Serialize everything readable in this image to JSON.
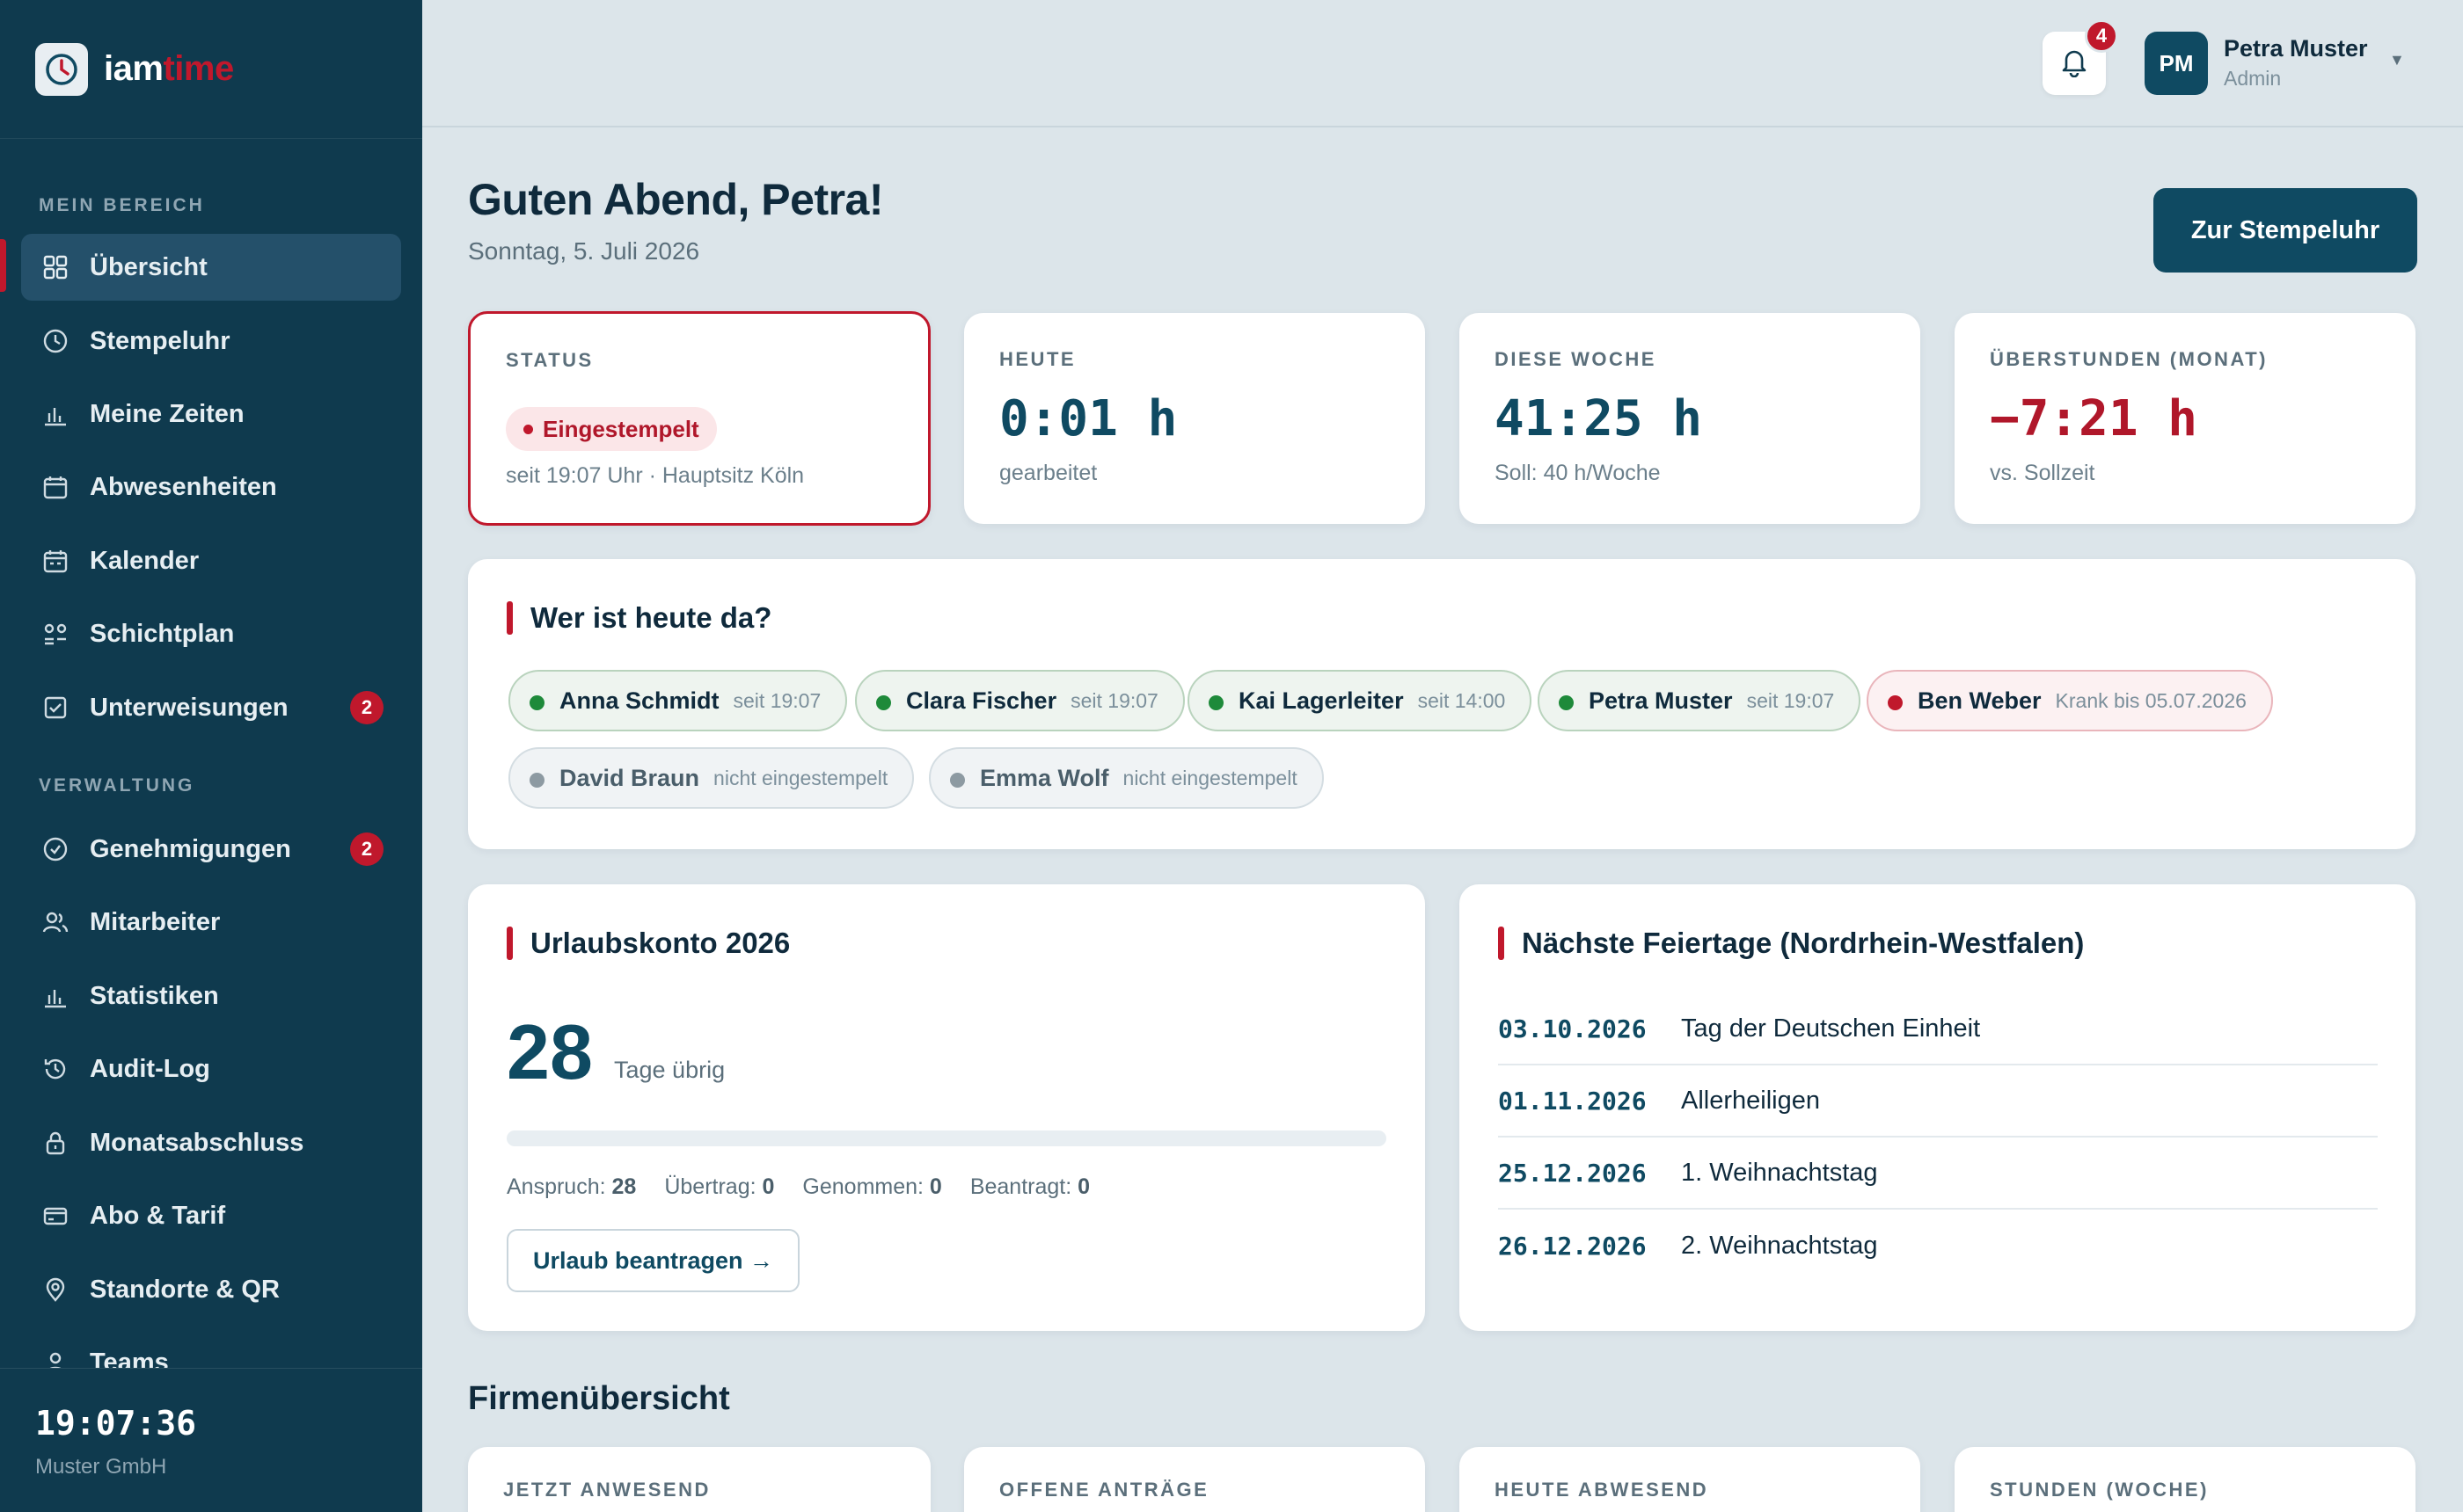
{
  "brand": {
    "part1": "iam",
    "part2": "time"
  },
  "sidebar": {
    "section1": "MEIN BEREICH",
    "section2": "VERWALTUNG",
    "items": [
      {
        "label": "Übersicht",
        "icon": "grid-icon"
      },
      {
        "label": "Stempeluhr",
        "icon": "clock-icon"
      },
      {
        "label": "Meine Zeiten",
        "icon": "bar-chart-icon"
      },
      {
        "label": "Abwesenheiten",
        "icon": "calendar-icon"
      },
      {
        "label": "Kalender",
        "icon": "calendar-icon"
      },
      {
        "label": "Schichtplan",
        "icon": "shift-icon"
      },
      {
        "label": "Unterweisungen",
        "icon": "checklist-icon",
        "badge": "2"
      },
      {
        "label": "Genehmigungen",
        "icon": "check-circle-icon",
        "badge": "2"
      },
      {
        "label": "Mitarbeiter",
        "icon": "users-icon"
      },
      {
        "label": "Statistiken",
        "icon": "bar-chart-icon"
      },
      {
        "label": "Audit-Log",
        "icon": "history-icon"
      },
      {
        "label": "Monatsabschluss",
        "icon": "lock-icon"
      },
      {
        "label": "Abo & Tarif",
        "icon": "credit-card-icon"
      },
      {
        "label": "Standorte & QR",
        "icon": "location-icon"
      },
      {
        "label": "Teams",
        "icon": "user-icon"
      }
    ],
    "clock": "19:07:36",
    "company": "Muster GmbH"
  },
  "topbar": {
    "notifications": "4",
    "avatar_initials": "PM",
    "user_name": "Petra Muster",
    "user_role": "Admin"
  },
  "main": {
    "greeting": "Guten Abend, Petra!",
    "date": "Sonntag, 5. Juli 2026",
    "clock_button": "Zur Stempeluhr",
    "stats": {
      "status": {
        "label": "STATUS",
        "pill": "Eingestempelt",
        "sub": "seit 19:07 Uhr · Hauptsitz Köln"
      },
      "today": {
        "label": "HEUTE",
        "value": "0:01 h",
        "sub": "gearbeitet"
      },
      "week": {
        "label": "DIESE WOCHE",
        "value": "41:25 h",
        "sub": "Soll: 40 h/Woche"
      },
      "overtime": {
        "label": "ÜBERSTUNDEN (MONAT)",
        "value": "−7:21 h",
        "sub": "vs. Sollzeit"
      }
    },
    "presence": {
      "title": "Wer ist heute da?",
      "people": [
        {
          "name": "Anna Schmidt",
          "sub": "seit 19:07",
          "state": "in"
        },
        {
          "name": "Clara Fischer",
          "sub": "seit 19:07",
          "state": "in"
        },
        {
          "name": "Kai Lagerleiter",
          "sub": "seit 14:00",
          "state": "in"
        },
        {
          "name": "Petra Muster",
          "sub": "seit 19:07",
          "state": "in"
        },
        {
          "name": "Ben Weber",
          "sub": "Krank bis 05.07.2026",
          "state": "sick"
        },
        {
          "name": "David Braun",
          "sub": "nicht eingestempelt",
          "state": "out"
        },
        {
          "name": "Emma Wolf",
          "sub": "nicht eingestempelt",
          "state": "out"
        }
      ]
    },
    "vacation": {
      "title": "Urlaubskonto 2026",
      "remaining": "28",
      "remaining_label": "Tage übrig",
      "used_fraction": 0,
      "stats": [
        {
          "label": "Anspruch:",
          "value": "28"
        },
        {
          "label": "Übertrag:",
          "value": "0"
        },
        {
          "label": "Genommen:",
          "value": "0"
        },
        {
          "label": "Beantragt:",
          "value": "0"
        }
      ],
      "button": "Urlaub beantragen →"
    },
    "holidays": {
      "title": "Nächste Feiertage (Nordrhein-Westfalen)",
      "items": [
        {
          "date": "03.10.2026",
          "name": "Tag der Deutschen Einheit"
        },
        {
          "date": "01.11.2026",
          "name": "Allerheiligen"
        },
        {
          "date": "25.12.2026",
          "name": "1. Weihnachtstag"
        },
        {
          "date": "26.12.2026",
          "name": "2. Weihnachtstag"
        }
      ]
    },
    "company_overview": {
      "title": "Firmenübersicht",
      "cards": [
        "JETZT ANWESEND",
        "OFFENE ANTRÄGE",
        "HEUTE ABWESEND",
        "STUNDEN (WOCHE)"
      ]
    }
  },
  "colors": {
    "sidebar": "#0f3a4e",
    "accent": "#c0182c",
    "primary": "#0f4a62",
    "background": "#dce5ea"
  }
}
